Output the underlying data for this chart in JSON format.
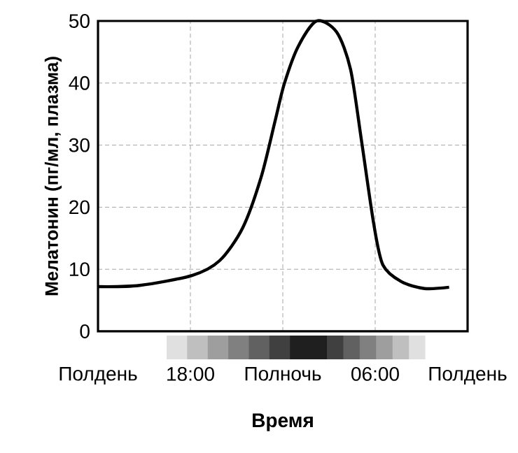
{
  "chart_data": {
    "type": "line",
    "xlabel": "Время",
    "ylabel": "Мелатонин (пг/мл, плазма)",
    "x": [
      "2000-01-01T12:00",
      "2000-01-01T14:42",
      "2000-01-01T18:06",
      "2000-01-01T19:54",
      "2000-01-01T21:24",
      "2000-01-01T22:36",
      "2000-01-01T23:30",
      "2000-01-02T00:06",
      "2000-01-02T01:00",
      "2000-01-02T02:12",
      "2000-01-02T03:30",
      "2000-01-02T04:24",
      "2000-01-02T05:06",
      "2000-01-02T05:54",
      "2000-01-02T06:30",
      "2000-01-02T07:42",
      "2000-01-02T09:12",
      "2000-01-02T10:48"
    ],
    "series": [
      {
        "color": "#000000",
        "values": [
          7.2,
          7.4,
          9.0,
          11.4,
          16.7,
          24.9,
          33.9,
          39.9,
          45.9,
          50,
          48.2,
          42.2,
          30.9,
          17.4,
          10.7,
          8.0,
          6.9,
          7.1
        ]
      }
    ],
    "xlim": [
      "2000-01-01T12:00",
      "2000-01-02T12:00"
    ],
    "ylim": [
      0,
      50
    ],
    "xticks": [
      {
        "value": "2000-01-01T12:00",
        "label": "Полдень"
      },
      {
        "value": "2000-01-01T18:00",
        "label": "18:00"
      },
      {
        "value": "2000-01-02T00:00",
        "label": "Полночь"
      },
      {
        "value": "2000-01-02T06:00",
        "label": "06:00"
      },
      {
        "value": "2000-01-02T12:00",
        "label": "Полдень"
      }
    ],
    "yticks": [
      0,
      10,
      20,
      30,
      40,
      50
    ],
    "grid": true,
    "marker": "none",
    "line_style": "solid"
  }
}
